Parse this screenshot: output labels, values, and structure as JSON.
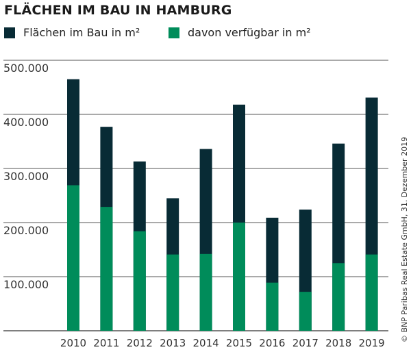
{
  "chart_data": {
    "type": "bar",
    "stacked": "overlay",
    "title": "FLÄCHEN IM BAU IN HAMBURG",
    "categories": [
      "2010",
      "2011",
      "2012",
      "2013",
      "2014",
      "2015",
      "2016",
      "2017",
      "2018",
      "2019"
    ],
    "series": [
      {
        "name": "Flächen im Bau in m²",
        "color": "#082b35",
        "values": [
          465000,
          377000,
          313000,
          245000,
          336000,
          418000,
          209000,
          224000,
          346000,
          431000
        ]
      },
      {
        "name": "davon verfügbar in m²",
        "color": "#008c5a",
        "values": [
          269000,
          229000,
          184000,
          141000,
          142000,
          200000,
          89000,
          72000,
          125000,
          141000
        ]
      }
    ],
    "ylim": [
      0,
      500000
    ],
    "yticks": [
      100000,
      200000,
      300000,
      400000,
      500000
    ],
    "ytick_labels": [
      "100.000",
      "200.000",
      "300.000",
      "400.000",
      "500.000"
    ],
    "grid": true,
    "legend": "top",
    "source": "© BNP Paribas Real Estate GmbH, 31. Dezember 2019"
  }
}
